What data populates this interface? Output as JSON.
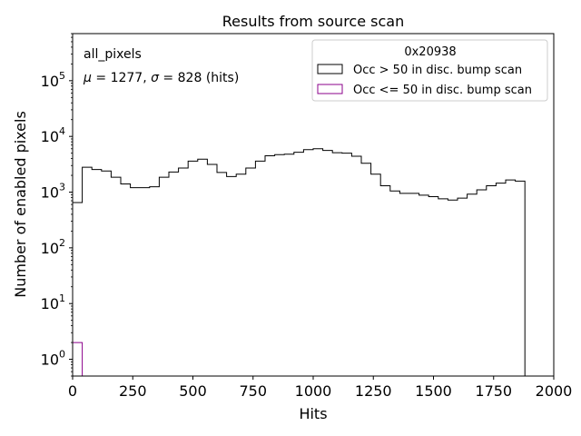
{
  "chart_data": {
    "type": "histogram",
    "title": "Results from source scan",
    "xlabel": "Hits",
    "ylabel": "Number of enabled pixels",
    "xlim": [
      0,
      2000
    ],
    "ylim": [
      0.5,
      700000
    ],
    "yscale": "log",
    "x_ticks": [
      0,
      250,
      500,
      750,
      1000,
      1250,
      1500,
      1750,
      2000
    ],
    "y_ticks": [
      {
        "value": 1,
        "base": "10",
        "exp": "0"
      },
      {
        "value": 10,
        "base": "10",
        "exp": "1"
      },
      {
        "value": 100,
        "base": "10",
        "exp": "2"
      },
      {
        "value": 1000,
        "base": "10",
        "exp": "3"
      },
      {
        "value": 10000,
        "base": "10",
        "exp": "4"
      },
      {
        "value": 100000,
        "base": "10",
        "exp": "5"
      }
    ],
    "grid": false,
    "annotation": {
      "name_text": "all_pixels",
      "mu": "1277",
      "sigma": "828",
      "unit": "(hits)"
    },
    "legend": {
      "title": "0x20938",
      "placement": "top-right",
      "entries": [
        {
          "label": "Occ > 50 in disc. bump scan",
          "color": "#000000"
        },
        {
          "label": "Occ <= 50 in disc. bump scan",
          "color": "#8b008b"
        }
      ]
    },
    "bin_width": 40,
    "series": [
      {
        "name": "Occ > 50 in disc. bump scan",
        "color": "#000000",
        "bin_start": 0,
        "values": [
          650,
          2800,
          2550,
          2400,
          1850,
          1400,
          1200,
          1200,
          1250,
          1850,
          2300,
          2700,
          3600,
          3900,
          3150,
          2250,
          1900,
          2100,
          2700,
          3600,
          4500,
          4700,
          4800,
          5200,
          5800,
          6000,
          5600,
          5100,
          5000,
          4400,
          3300,
          2100,
          1300,
          1050,
          950,
          950,
          880,
          830,
          760,
          720,
          780,
          920,
          1100,
          1300,
          1450,
          1650,
          1580,
          0.5
        ]
      },
      {
        "name": "Occ <= 50 in disc. bump scan",
        "color": "#8b008b",
        "bin_start": 0,
        "values": [
          2
        ]
      }
    ]
  }
}
